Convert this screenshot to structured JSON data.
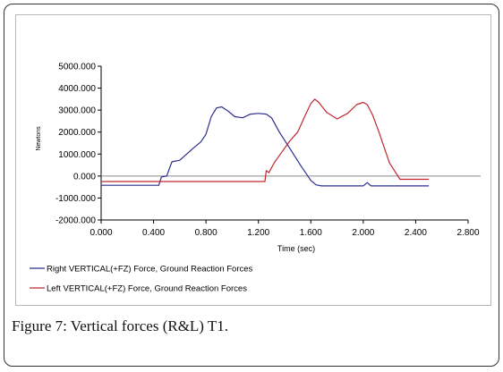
{
  "caption": {
    "label": "Figure 7:",
    "text": " Vertical forces (R&L) T1."
  },
  "chart_data": {
    "type": "line",
    "title": "",
    "xlabel": "Time (sec)",
    "ylabel": "Newtons",
    "xlim": [
      0,
      2.8
    ],
    "ylim": [
      -2000,
      5000
    ],
    "xticks": [
      "0.000",
      "0.400",
      "0.800",
      "1.200",
      "1.600",
      "2.000",
      "2.400",
      "2.800"
    ],
    "yticks": [
      "5000.000",
      "4000.000",
      "3000.000",
      "2000.000",
      "1000.000",
      "0.000",
      "-1000.000",
      "-2000.000"
    ],
    "grid": false,
    "legend_position": "bottom",
    "series": [
      {
        "name": "Right VERTICAL(+FZ) Force, Ground Reaction Forces",
        "color": "#2b2e8f",
        "x": [
          0.0,
          0.44,
          0.46,
          0.5,
          0.54,
          0.6,
          0.7,
          0.76,
          0.8,
          0.84,
          0.88,
          0.92,
          0.97,
          1.02,
          1.08,
          1.14,
          1.2,
          1.26,
          1.3,
          1.36,
          1.44,
          1.52,
          1.6,
          1.64,
          1.68,
          1.75,
          1.85,
          1.95,
          2.0,
          2.03,
          2.06,
          2.2,
          2.5
        ],
        "y": [
          -420,
          -420,
          -40,
          0,
          650,
          720,
          1250,
          1550,
          1900,
          2700,
          3100,
          3150,
          2950,
          2700,
          2650,
          2820,
          2850,
          2820,
          2650,
          2000,
          1250,
          500,
          -200,
          -400,
          -450,
          -450,
          -450,
          -450,
          -450,
          -300,
          -450,
          -450,
          -450
        ]
      },
      {
        "name": "Left VERTICAL(+FZ) Force, Ground Reaction Forces",
        "color": "#c0272d",
        "x": [
          0.0,
          1.25,
          1.26,
          1.28,
          1.32,
          1.38,
          1.44,
          1.5,
          1.56,
          1.6,
          1.63,
          1.66,
          1.72,
          1.8,
          1.88,
          1.95,
          2.0,
          2.03,
          2.07,
          2.12,
          2.2,
          2.28,
          2.5
        ],
        "y": [
          -250,
          -250,
          250,
          150,
          600,
          1100,
          1600,
          2000,
          2800,
          3300,
          3500,
          3350,
          2900,
          2600,
          2850,
          3250,
          3350,
          3250,
          2800,
          2000,
          600,
          -150,
          -150
        ]
      }
    ]
  }
}
